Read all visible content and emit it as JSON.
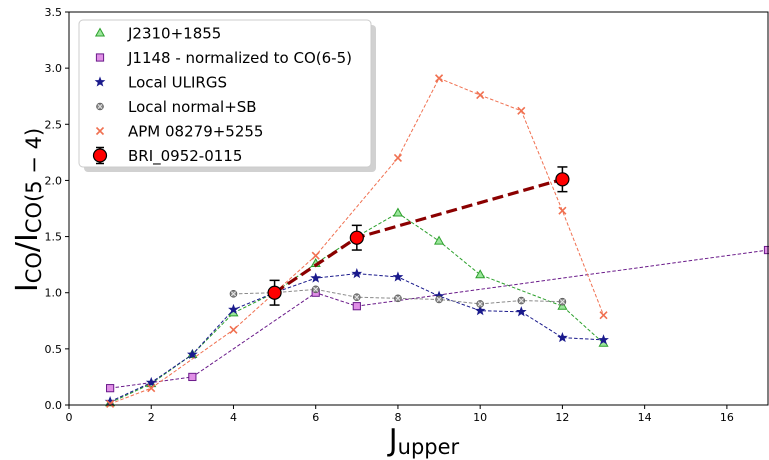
{
  "chart_data": {
    "type": "line",
    "title": "",
    "xlabel": "J",
    "xlabel_sub": "upper",
    "ylabel": "I",
    "ylabel_sub1": "CO",
    "ylabel_mid": "/I",
    "ylabel_sub2": "CO(5 − 4)",
    "xlim": [
      0,
      17
    ],
    "ylim": [
      0,
      3.5
    ],
    "x_ticks": [
      0,
      2,
      4,
      6,
      8,
      10,
      12,
      14,
      16
    ],
    "y_ticks": [
      "0.0",
      "0.5",
      "1.0",
      "1.5",
      "2.0",
      "2.5",
      "3.0",
      "3.5"
    ],
    "grid": false,
    "legend_position": "upper-left",
    "series": [
      {
        "name": "J2310+1855",
        "color": "#2ca02c",
        "face": "#9be59b",
        "marker": "triangle",
        "style": "dashed",
        "points": [
          [
            1,
            0.02
          ],
          [
            2,
            0.19
          ],
          [
            3,
            0.45
          ],
          [
            4,
            0.82
          ],
          [
            5,
            1.0
          ],
          [
            6,
            1.26
          ],
          [
            7,
            1.5
          ],
          [
            8,
            1.71
          ],
          [
            9,
            1.46
          ],
          [
            10,
            1.16
          ],
          [
            11,
            null
          ],
          [
            12,
            0.88
          ],
          [
            13,
            0.55
          ]
        ]
      },
      {
        "name": "J1148 - normalized to CO(6-5)",
        "color": "#6a1b8a",
        "face": "#e08fe6",
        "marker": "square",
        "style": "dashed",
        "points": [
          [
            1,
            0.15
          ],
          [
            3,
            0.25
          ],
          [
            6,
            1.0
          ],
          [
            7,
            0.88
          ],
          [
            17,
            1.38
          ]
        ]
      },
      {
        "name": "Local ULIRGS",
        "color": "#1a1a8c",
        "face": "#1a1a8c",
        "marker": "star",
        "style": "dashed",
        "points": [
          [
            1,
            0.03
          ],
          [
            2,
            0.2
          ],
          [
            3,
            0.45
          ],
          [
            4,
            0.85
          ],
          [
            5,
            1.0
          ],
          [
            6,
            1.13
          ],
          [
            7,
            1.17
          ],
          [
            8,
            1.14
          ],
          [
            9,
            0.97
          ],
          [
            10,
            0.84
          ],
          [
            11,
            0.83
          ],
          [
            12,
            0.6
          ],
          [
            13,
            0.58
          ]
        ]
      },
      {
        "name": "Local normal+SB",
        "color": "#8a8a8a",
        "face": "#8a8a8a",
        "marker": "xbox",
        "style": "dashed",
        "points": [
          [
            4,
            0.99
          ],
          [
            5,
            1.0
          ],
          [
            6,
            1.03
          ],
          [
            7,
            0.96
          ],
          [
            8,
            0.95
          ],
          [
            9,
            0.94
          ],
          [
            10,
            0.9
          ],
          [
            11,
            0.93
          ],
          [
            12,
            0.92
          ]
        ]
      },
      {
        "name": "APM 08279+5255",
        "color": "#f07050",
        "face": "#f07050",
        "marker": "x",
        "style": "dashed",
        "points": [
          [
            1,
            0.01
          ],
          [
            2,
            0.15
          ],
          [
            4,
            0.67
          ],
          [
            5,
            1.0
          ],
          [
            6,
            1.33
          ],
          [
            8,
            2.2
          ],
          [
            9,
            2.91
          ],
          [
            10,
            2.76
          ],
          [
            11,
            2.62
          ],
          [
            12,
            1.73
          ],
          [
            13,
            0.8
          ]
        ]
      },
      {
        "name": "BRI_0952-0115",
        "color": "#8b0000",
        "face": "#ff0000",
        "marker": "circle",
        "style": "thick-dashed",
        "points": [
          [
            5,
            1.0
          ],
          [
            7,
            1.49
          ],
          [
            12,
            2.01
          ]
        ],
        "errors": [
          0.11,
          0.11,
          0.11
        ]
      }
    ]
  }
}
